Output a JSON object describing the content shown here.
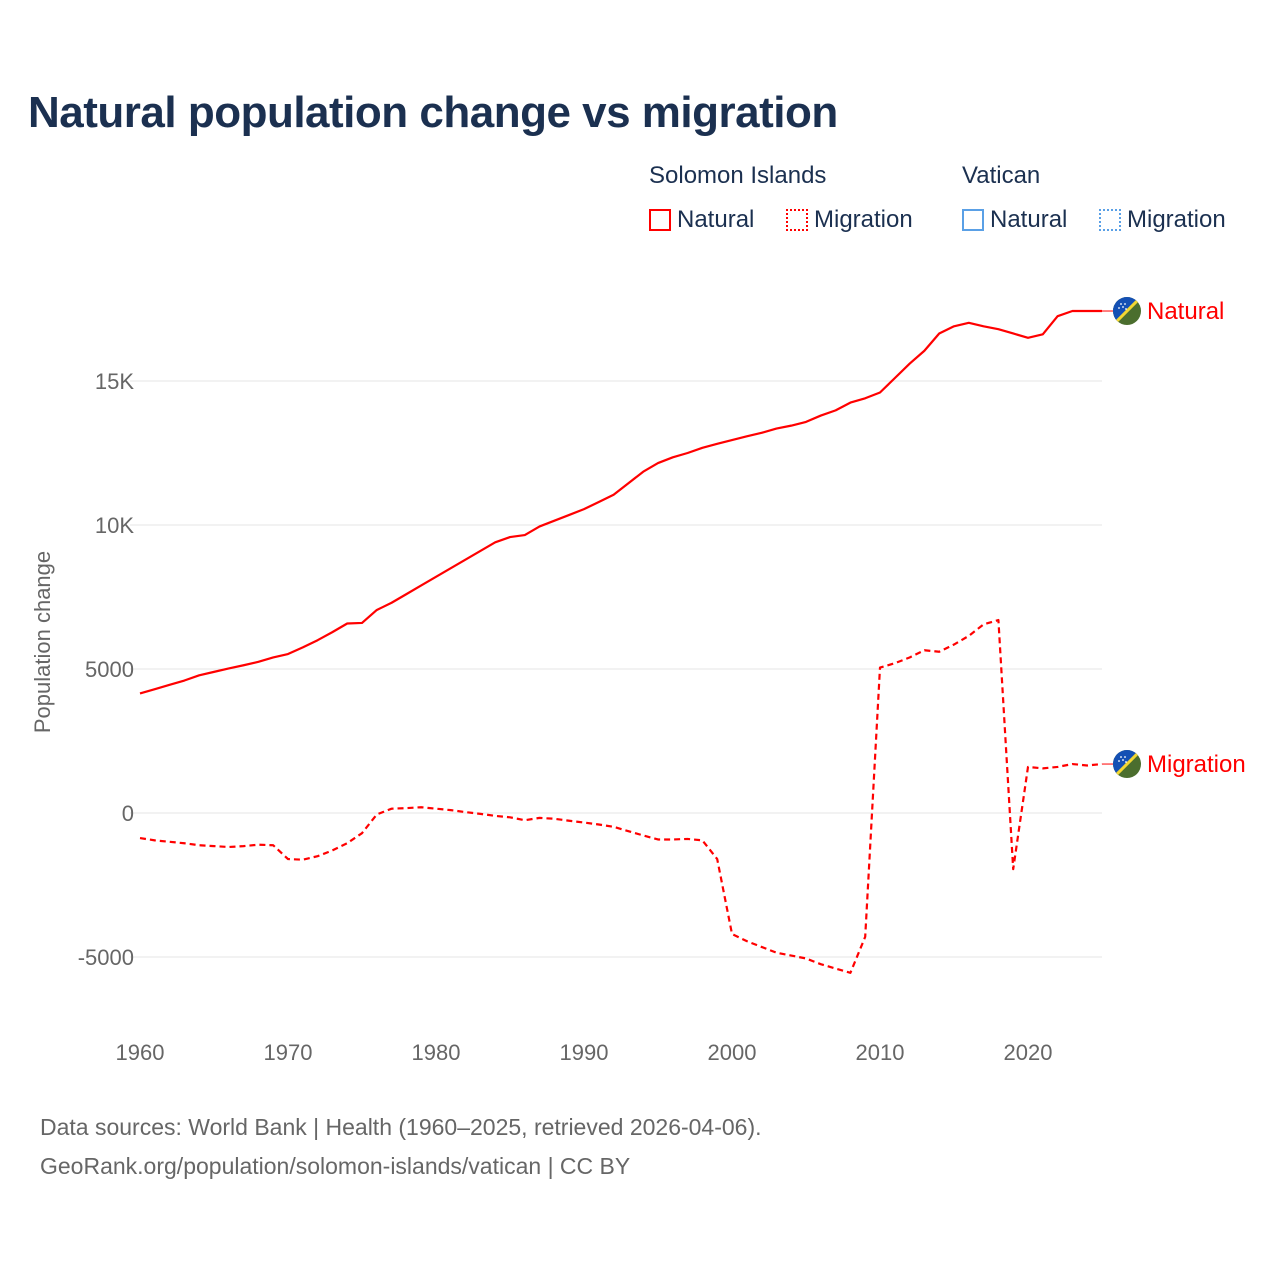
{
  "chart_data": {
    "type": "line",
    "title": "Natural population change vs migration",
    "ylabel": "Population change",
    "xlabel": "",
    "xlim": [
      1960,
      2025
    ],
    "ylim": [
      -7000,
      18000
    ],
    "x_ticks": [
      1960,
      1970,
      1980,
      1990,
      2000,
      2010,
      2020
    ],
    "x_tick_labels": [
      "1960",
      "1970",
      "1980",
      "1990",
      "2000",
      "2010",
      "2020"
    ],
    "y_ticks": [
      -5000,
      0,
      5000,
      10000,
      15000
    ],
    "y_tick_labels": [
      "-5000",
      "0",
      "5000",
      "10K",
      "15K"
    ],
    "grid": true,
    "legend": {
      "placement": "top-right",
      "groups": [
        {
          "name": "Solomon Islands",
          "items": [
            {
              "label": "Natural",
              "color": "#ff0000",
              "style": "solid"
            },
            {
              "label": "Migration",
              "color": "#ff0000",
              "style": "dotted"
            }
          ]
        },
        {
          "name": "Vatican",
          "items": [
            {
              "label": "Natural",
              "color": "#5aa0e6",
              "style": "solid"
            },
            {
              "label": "Migration",
              "color": "#5aa0e6",
              "style": "dotted"
            }
          ]
        }
      ]
    },
    "x": [
      1960,
      1961,
      1962,
      1963,
      1964,
      1965,
      1966,
      1967,
      1968,
      1969,
      1970,
      1971,
      1972,
      1973,
      1974,
      1975,
      1976,
      1977,
      1978,
      1979,
      1980,
      1981,
      1982,
      1983,
      1984,
      1985,
      1986,
      1987,
      1988,
      1989,
      1990,
      1991,
      1992,
      1993,
      1994,
      1995,
      1996,
      1997,
      1998,
      1999,
      2000,
      2001,
      2002,
      2003,
      2004,
      2005,
      2006,
      2007,
      2008,
      2009,
      2010,
      2011,
      2012,
      2013,
      2014,
      2015,
      2016,
      2017,
      2018,
      2019,
      2020,
      2021,
      2022,
      2023,
      2024,
      2025
    ],
    "series": [
      {
        "name": "Solomon Islands Natural",
        "end_label": "Natural",
        "color": "#ff0000",
        "dash": "solid",
        "values": [
          4150,
          4300,
          4450,
          4600,
          4780,
          4900,
          5020,
          5130,
          5250,
          5400,
          5520,
          5750,
          6000,
          6280,
          6580,
          6600,
          7050,
          7300,
          7600,
          7900,
          8200,
          8500,
          8800,
          9100,
          9400,
          9580,
          9650,
          9950,
          10150,
          10350,
          10550,
          10800,
          11050,
          11450,
          11850,
          12150,
          12350,
          12500,
          12680,
          12820,
          12950,
          13080,
          13200,
          13350,
          13450,
          13580,
          13800,
          13980,
          14250,
          14400,
          14600,
          15100,
          15600,
          16050,
          16650,
          16900,
          17020,
          16900,
          16800,
          16650,
          16500,
          16620,
          17250,
          17430,
          17430,
          17430
        ]
      },
      {
        "name": "Solomon Islands Migration",
        "end_label": "Migration",
        "color": "#ff0000",
        "dash": "dashed",
        "values": [
          -870,
          -950,
          -1000,
          -1050,
          -1120,
          -1150,
          -1180,
          -1150,
          -1100,
          -1120,
          -1600,
          -1620,
          -1500,
          -1300,
          -1050,
          -700,
          -50,
          150,
          170,
          200,
          150,
          100,
          30,
          -30,
          -100,
          -150,
          -250,
          -170,
          -200,
          -270,
          -330,
          -400,
          -480,
          -630,
          -780,
          -920,
          -920,
          -900,
          -950,
          -1600,
          -4200,
          -4450,
          -4650,
          -4850,
          -4950,
          -5050,
          -5250,
          -5400,
          -5550,
          -4300,
          5050,
          5200,
          5400,
          5650,
          5600,
          5850,
          6150,
          6550,
          6700,
          -1950,
          1600,
          1550,
          1600,
          1700,
          1650,
          1700
        ]
      }
    ],
    "source": [
      "Data sources: World Bank | Health (1960–2025, retrieved 2026-04-06).",
      "GeoRank.org/population/solomon-islands/vatican | CC BY"
    ]
  }
}
